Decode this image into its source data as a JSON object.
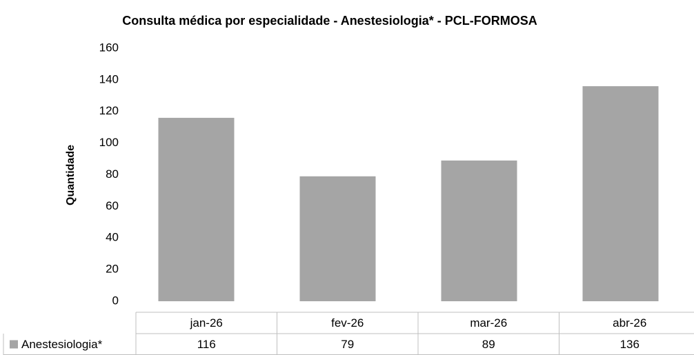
{
  "chart_data": {
    "type": "bar",
    "title": "Consulta médica por especialidade - Anestesiologia* - PCL-FORMOSA",
    "y_label": "Quantidade",
    "categories": [
      "jan-26",
      "fev-26",
      "mar-26",
      "abr-26"
    ],
    "series": [
      {
        "name": "Anestesiologia*",
        "color": "#a5a5a5",
        "values": [
          116,
          79,
          89,
          136
        ]
      }
    ],
    "ylim": [
      0,
      160
    ],
    "yticks": [
      0,
      20,
      40,
      60,
      80,
      100,
      120,
      140,
      160
    ],
    "grid": false,
    "data_table": true
  }
}
